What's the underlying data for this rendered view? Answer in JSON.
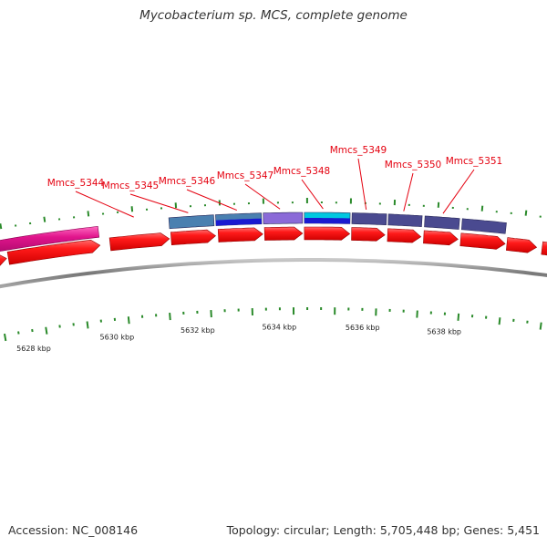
{
  "title": "Mycobacterium sp. MCS, complete genome",
  "footer": {
    "accession": "Accession: NC_008146",
    "summary": "Topology: circular; Length: 5,705,448 bp; Genes: 5,451"
  },
  "colors": {
    "cds": "#e8000c",
    "cds_light": "#ff5555",
    "backbone": "#888888",
    "tick": "#2a8a2a",
    "gene_label": "#e4000f",
    "magenta_feature": "#e0148c"
  },
  "scale_labels": [
    "5628 kbp",
    "5630 kbp",
    "5632 kbp",
    "5634 kbp",
    "5636 kbp",
    "5638 kbp"
  ],
  "gene_labels": [
    "Mmcs_5344",
    "Mmcs_5345",
    "Mmcs_5346",
    "Mmcs_5347",
    "Mmcs_5348",
    "Mmcs_5349",
    "Mmcs_5350",
    "Mmcs_5351"
  ],
  "cog_bar_colors": [
    "#4a80b0",
    "#4a80b0",
    "#8a6ad8",
    "#00c8e0",
    "#4a4a90",
    "#4a4a90",
    "#4a4a90",
    "#4a4a90"
  ],
  "cog_bar_colors_inner": [
    "",
    "#1a1ad0",
    "",
    "#1a1ad0",
    "",
    "",
    "",
    ""
  ]
}
